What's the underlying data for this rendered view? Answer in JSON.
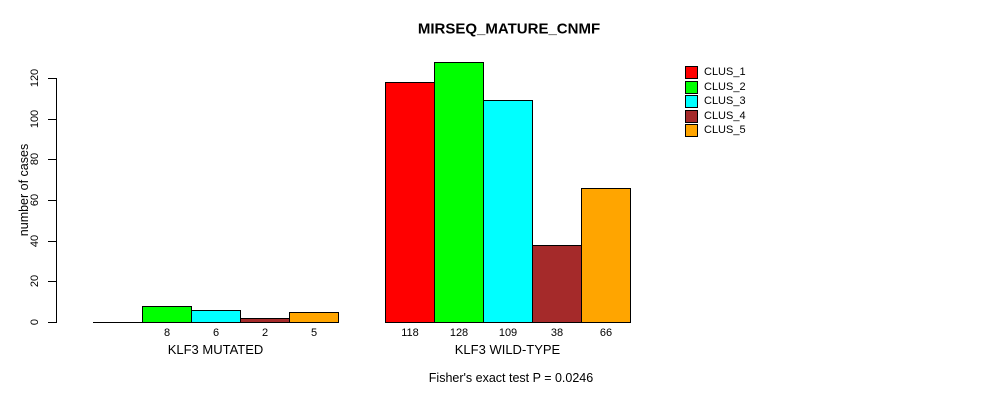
{
  "header": {
    "title": "MIRSEQ_MATURE_CNMF"
  },
  "chart_data": {
    "type": "bar",
    "title": "MIRSEQ_MATURE_CNMF",
    "xlabel": "",
    "ylabel": "number of cases",
    "categories": [
      "KLF3 MUTATED",
      "KLF3 WILD-TYPE"
    ],
    "series": [
      {
        "name": "CLUS_1",
        "color": "#FF0000",
        "values": [
          0,
          118
        ]
      },
      {
        "name": "CLUS_2",
        "color": "#00FF00",
        "values": [
          8,
          128
        ]
      },
      {
        "name": "CLUS_3",
        "color": "#00FFFF",
        "values": [
          6,
          109
        ]
      },
      {
        "name": "CLUS_4",
        "color": "#A52A2A",
        "values": [
          2,
          38
        ]
      },
      {
        "name": "CLUS_5",
        "color": "#FFA500",
        "values": [
          5,
          66
        ]
      }
    ],
    "bar_value_labels": [
      [
        "",
        "8",
        "6",
        "2",
        "5"
      ],
      [
        "118",
        "128",
        "109",
        "38",
        "66"
      ]
    ],
    "yticks": [
      0,
      20,
      40,
      60,
      80,
      100,
      120
    ],
    "ylim": [
      0,
      128
    ],
    "grid": false,
    "legend_position": "right",
    "annotation": "Fisher's exact test P = 0.0246"
  },
  "legend": {
    "items": [
      {
        "label": "CLUS_1",
        "color": "#FF0000"
      },
      {
        "label": "CLUS_2",
        "color": "#00FF00"
      },
      {
        "label": "CLUS_3",
        "color": "#00FFFF"
      },
      {
        "label": "CLUS_4",
        "color": "#A52A2A"
      },
      {
        "label": "CLUS_5",
        "color": "#FFA500"
      }
    ]
  }
}
